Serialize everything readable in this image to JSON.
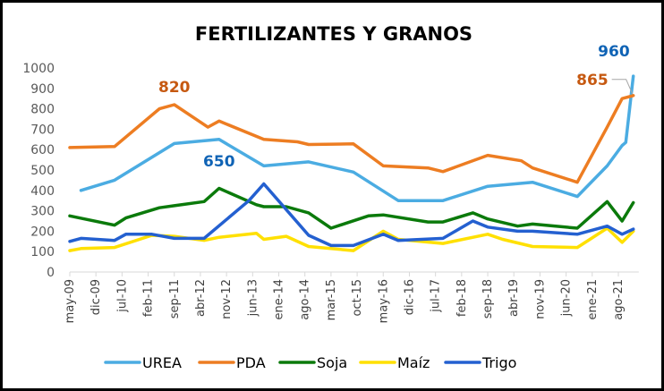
{
  "chart_data": {
    "type": "line",
    "title": "FERTILIZANTES Y GRANOS",
    "xlabel": "",
    "ylabel": "",
    "ylim": [
      0,
      1000
    ],
    "yticks": [
      0,
      100,
      200,
      300,
      400,
      500,
      600,
      700,
      800,
      900,
      1000
    ],
    "x_unit": "months since may-09",
    "xlim": [
      0,
      152
    ],
    "categories": [
      "may-09",
      "dic-09",
      "jul-10",
      "feb-11",
      "sep-11",
      "abr-12",
      "nov-12",
      "jun-13",
      "ene-14",
      "ago-14",
      "mar-15",
      "oct-15",
      "may-16",
      "dic-16",
      "jul-17",
      "feb-18",
      "sep-18",
      "abr-19",
      "nov-19",
      "jun-20",
      "ene-21",
      "ago-21"
    ],
    "category_month_index": [
      0,
      7,
      14,
      21,
      28,
      35,
      42,
      49,
      56,
      63,
      70,
      77,
      84,
      91,
      98,
      105,
      112,
      119,
      126,
      133,
      140,
      147
    ],
    "grid": false,
    "legend_position": "bottom",
    "series": [
      {
        "name": "UREA",
        "color": "#4BACE2",
        "points": [
          [
            3,
            400
          ],
          [
            12,
            450
          ],
          [
            28,
            630
          ],
          [
            40,
            650
          ],
          [
            52,
            520
          ],
          [
            64,
            540
          ],
          [
            76,
            490
          ],
          [
            88,
            350
          ],
          [
            100,
            350
          ],
          [
            112,
            420
          ],
          [
            124,
            440
          ],
          [
            136,
            370
          ],
          [
            144,
            520
          ],
          [
            148,
            620
          ],
          [
            149,
            635
          ],
          [
            151,
            960
          ]
        ]
      },
      {
        "name": "PDA",
        "color": "#ED7D22",
        "points": [
          [
            0,
            610
          ],
          [
            12,
            615
          ],
          [
            24,
            800
          ],
          [
            28,
            820
          ],
          [
            37,
            710
          ],
          [
            40,
            740
          ],
          [
            52,
            650
          ],
          [
            61,
            638
          ],
          [
            64,
            625
          ],
          [
            76,
            628
          ],
          [
            84,
            520
          ],
          [
            96,
            510
          ],
          [
            100,
            492
          ],
          [
            112,
            572
          ],
          [
            121,
            545
          ],
          [
            124,
            510
          ],
          [
            136,
            440
          ],
          [
            144,
            710
          ],
          [
            148,
            850
          ],
          [
            151,
            865
          ]
        ]
      },
      {
        "name": "Soja",
        "color": "#0B7A0B",
        "points": [
          [
            0,
            275
          ],
          [
            12,
            230
          ],
          [
            15,
            265
          ],
          [
            24,
            315
          ],
          [
            28,
            325
          ],
          [
            36,
            345
          ],
          [
            40,
            410
          ],
          [
            50,
            330
          ],
          [
            52,
            320
          ],
          [
            58,
            320
          ],
          [
            64,
            290
          ],
          [
            70,
            215
          ],
          [
            80,
            275
          ],
          [
            84,
            280
          ],
          [
            96,
            245
          ],
          [
            100,
            245
          ],
          [
            108,
            290
          ],
          [
            112,
            260
          ],
          [
            120,
            225
          ],
          [
            124,
            235
          ],
          [
            136,
            215
          ],
          [
            144,
            345
          ],
          [
            148,
            250
          ],
          [
            151,
            340
          ]
        ]
      },
      {
        "name": "Maíz",
        "color": "#FFE000",
        "points": [
          [
            0,
            105
          ],
          [
            3,
            115
          ],
          [
            12,
            120
          ],
          [
            22,
            180
          ],
          [
            28,
            175
          ],
          [
            36,
            155
          ],
          [
            40,
            170
          ],
          [
            50,
            190
          ],
          [
            52,
            160
          ],
          [
            58,
            175
          ],
          [
            64,
            125
          ],
          [
            76,
            105
          ],
          [
            84,
            200
          ],
          [
            88,
            160
          ],
          [
            100,
            140
          ],
          [
            112,
            185
          ],
          [
            116,
            160
          ],
          [
            124,
            125
          ],
          [
            136,
            120
          ],
          [
            144,
            215
          ],
          [
            148,
            145
          ],
          [
            151,
            200
          ]
        ]
      },
      {
        "name": "Trigo",
        "color": "#2460D0",
        "points": [
          [
            0,
            150
          ],
          [
            3,
            165
          ],
          [
            12,
            155
          ],
          [
            15,
            185
          ],
          [
            22,
            185
          ],
          [
            28,
            165
          ],
          [
            36,
            165
          ],
          [
            48,
            350
          ],
          [
            52,
            432
          ],
          [
            64,
            180
          ],
          [
            70,
            130
          ],
          [
            76,
            130
          ],
          [
            84,
            185
          ],
          [
            88,
            155
          ],
          [
            100,
            165
          ],
          [
            108,
            250
          ],
          [
            112,
            220
          ],
          [
            120,
            200
          ],
          [
            124,
            200
          ],
          [
            136,
            185
          ],
          [
            144,
            225
          ],
          [
            148,
            185
          ],
          [
            151,
            210
          ]
        ]
      }
    ],
    "annotations": [
      {
        "text": "820",
        "series": "PDA",
        "month_index": 28,
        "value": 820,
        "color": "#C65911"
      },
      {
        "text": "650",
        "series": "UREA",
        "month_index": 40,
        "value": 650,
        "color": "#0F63B5"
      },
      {
        "text": "960",
        "series": "UREA",
        "month_index": 151,
        "value": 960,
        "color": "#0F63B5"
      },
      {
        "text": "865",
        "series": "PDA",
        "month_index": 151,
        "value": 865,
        "color": "#C65911"
      }
    ]
  }
}
